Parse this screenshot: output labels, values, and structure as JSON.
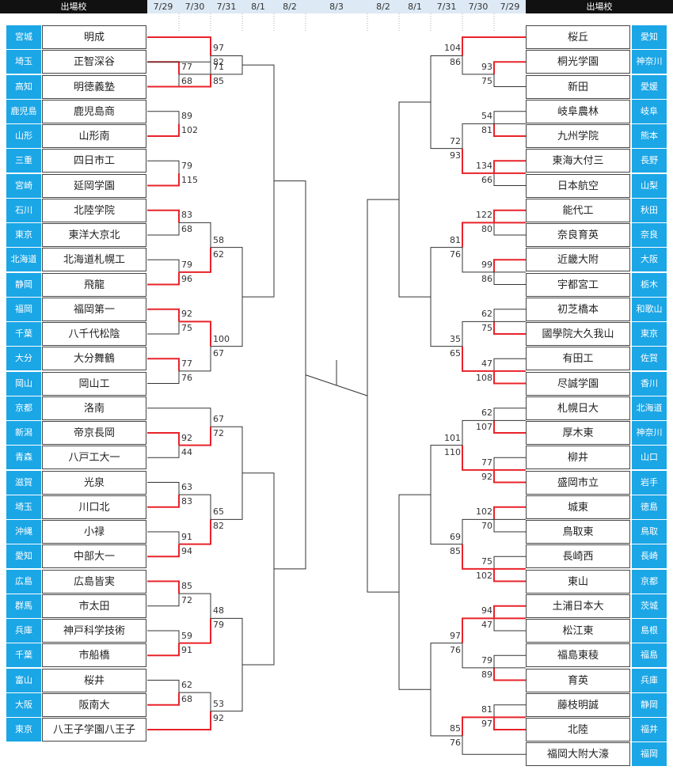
{
  "header": {
    "left_label": "出場校",
    "right_label": "出場校",
    "dates": [
      "7/29",
      "7/30",
      "7/31",
      "8/1",
      "8/2",
      "8/3",
      "8/2",
      "8/1",
      "7/31",
      "7/30",
      "7/29"
    ]
  },
  "left_teams": [
    {
      "pref": "宮城",
      "name": "明成"
    },
    {
      "pref": "埼玉",
      "name": "正智深谷"
    },
    {
      "pref": "高知",
      "name": "明徳義塾"
    },
    {
      "pref": "鹿児島",
      "name": "鹿児島商"
    },
    {
      "pref": "山形",
      "name": "山形南"
    },
    {
      "pref": "三重",
      "name": "四日市工"
    },
    {
      "pref": "宮崎",
      "name": "延岡学園"
    },
    {
      "pref": "石川",
      "name": "北陸学院"
    },
    {
      "pref": "東京",
      "name": "東洋大京北"
    },
    {
      "pref": "北海道",
      "name": "北海道札幌工"
    },
    {
      "pref": "静岡",
      "name": "飛龍"
    },
    {
      "pref": "福岡",
      "name": "福岡第一"
    },
    {
      "pref": "千葉",
      "name": "八千代松陰"
    },
    {
      "pref": "大分",
      "name": "大分舞鶴"
    },
    {
      "pref": "岡山",
      "name": "岡山工"
    },
    {
      "pref": "京都",
      "name": "洛南"
    },
    {
      "pref": "新潟",
      "name": "帝京長岡"
    },
    {
      "pref": "青森",
      "name": "八戸工大一"
    },
    {
      "pref": "滋賀",
      "name": "光泉"
    },
    {
      "pref": "埼玉",
      "name": "川口北"
    },
    {
      "pref": "沖縄",
      "name": "小禄"
    },
    {
      "pref": "愛知",
      "name": "中部大一"
    },
    {
      "pref": "広島",
      "name": "広島皆実"
    },
    {
      "pref": "群馬",
      "name": "市太田"
    },
    {
      "pref": "兵庫",
      "name": "神戸科学技術"
    },
    {
      "pref": "千葉",
      "name": "市船橋"
    },
    {
      "pref": "富山",
      "name": "桜井"
    },
    {
      "pref": "大阪",
      "name": "阪南大"
    },
    {
      "pref": "東京",
      "name": "八王子学園八王子"
    }
  ],
  "right_teams": [
    {
      "pref": "愛知",
      "name": "桜丘"
    },
    {
      "pref": "神奈川",
      "name": "桐光学園"
    },
    {
      "pref": "愛媛",
      "name": "新田"
    },
    {
      "pref": "岐阜",
      "name": "岐阜農林"
    },
    {
      "pref": "熊本",
      "name": "九州学院"
    },
    {
      "pref": "長野",
      "name": "東海大付三"
    },
    {
      "pref": "山梨",
      "name": "日本航空"
    },
    {
      "pref": "秋田",
      "name": "能代工"
    },
    {
      "pref": "奈良",
      "name": "奈良育英"
    },
    {
      "pref": "大阪",
      "name": "近畿大附"
    },
    {
      "pref": "栃木",
      "name": "宇都宮工"
    },
    {
      "pref": "和歌山",
      "name": "初芝橋本"
    },
    {
      "pref": "東京",
      "name": "國學院大久我山"
    },
    {
      "pref": "佐賀",
      "name": "有田工"
    },
    {
      "pref": "香川",
      "name": "尽誠学園"
    },
    {
      "pref": "北海道",
      "name": "札幌日大"
    },
    {
      "pref": "神奈川",
      "name": "厚木東"
    },
    {
      "pref": "山口",
      "name": "柳井"
    },
    {
      "pref": "岩手",
      "name": "盛岡市立"
    },
    {
      "pref": "徳島",
      "name": "城東"
    },
    {
      "pref": "鳥取",
      "name": "鳥取東"
    },
    {
      "pref": "長崎",
      "name": "長崎西"
    },
    {
      "pref": "京都",
      "name": "東山"
    },
    {
      "pref": "茨城",
      "name": "土浦日本大"
    },
    {
      "pref": "島根",
      "name": "松江東"
    },
    {
      "pref": "福島",
      "name": "福島東稜"
    },
    {
      "pref": "兵庫",
      "name": "育英"
    },
    {
      "pref": "静岡",
      "name": "藤枝明誠"
    },
    {
      "pref": "福井",
      "name": "北陸"
    },
    {
      "pref": "福岡",
      "name": "福岡大附大濠"
    }
  ],
  "left_r1": [
    {
      "top": 1,
      "bot": 2,
      "s": [
        "77",
        "68"
      ],
      "w": 0
    },
    {
      "top": 3,
      "bot": 4,
      "s": [
        "89",
        "102"
      ],
      "w": 1
    },
    {
      "top": 5,
      "bot": 6,
      "s": [
        "79",
        "115"
      ],
      "w": 1
    },
    {
      "top": 7,
      "bot": 8,
      "s": [
        "83",
        "68"
      ],
      "w": 0
    },
    {
      "top": 9,
      "bot": 10,
      "s": [
        "79",
        "96"
      ],
      "w": 1
    },
    {
      "top": 11,
      "bot": 12,
      "s": [
        "92",
        "75"
      ],
      "w": 0
    },
    {
      "top": 13,
      "bot": 14,
      "s": [
        "77",
        "76"
      ],
      "w": 0
    },
    {
      "top": 16,
      "bot": 17,
      "s": [
        "92",
        "44"
      ],
      "w": 0
    },
    {
      "top": 18,
      "bot": 19,
      "s": [
        "63",
        "83"
      ],
      "w": 1
    },
    {
      "top": 20,
      "bot": 21,
      "s": [
        "91",
        "94"
      ],
      "w": 1
    },
    {
      "top": 22,
      "bot": 23,
      "s": [
        "85",
        "72"
      ],
      "w": 0
    },
    {
      "top": 24,
      "bot": 25,
      "s": [
        "59",
        "91"
      ],
      "w": 1
    },
    {
      "top": 26,
      "bot": 27,
      "s": [
        "62",
        "68"
      ],
      "w": 1
    }
  ],
  "left_r2": [
    {
      "top": [
        0
      ],
      "bot": [
        0
      ],
      "s": [
        "97",
        "82"
      ],
      "w": 0
    },
    {
      "top": [
        1
      ],
      "bot": [
        2
      ],
      "s": [
        "71",
        "85"
      ],
      "w": 1
    },
    {
      "top": [
        0,
        3
      ],
      "bot": [
        0,
        4
      ],
      "s": [
        "58",
        "62"
      ],
      "w": 1
    },
    {
      "top": [
        0,
        5
      ],
      "bot": [
        0,
        6
      ],
      "s": [
        "100",
        "67"
      ],
      "w": 0
    },
    {
      "top": [
        15
      ],
      "bot": [
        0,
        7
      ],
      "s": [
        "67",
        "72"
      ],
      "w": 1
    },
    {
      "top": [
        0,
        8
      ],
      "bot": [
        0,
        9
      ],
      "s": [
        "65",
        "82"
      ],
      "w": 1
    },
    {
      "top": [
        0,
        10
      ],
      "bot": [
        0,
        11
      ],
      "s": [
        "48",
        "79"
      ],
      "w": 1
    },
    {
      "top": [
        0,
        12
      ],
      "bot": [
        28
      ],
      "s": [
        "53",
        "92"
      ],
      "w": 1
    }
  ],
  "right_r1": [
    {
      "top": 1,
      "bot": 2,
      "s": [
        "93",
        "75"
      ],
      "w": 0
    },
    {
      "top": 3,
      "bot": 4,
      "s": [
        "54",
        "81"
      ],
      "w": 1
    },
    {
      "top": 5,
      "bot": 6,
      "s": [
        "134",
        "66"
      ],
      "w": 0
    },
    {
      "top": 7,
      "bot": 8,
      "s": [
        "122",
        "80"
      ],
      "w": 0
    },
    {
      "top": 9,
      "bot": 10,
      "s": [
        "99",
        "86"
      ],
      "w": 0
    },
    {
      "top": 11,
      "bot": 12,
      "s": [
        "62",
        "75"
      ],
      "w": 1
    },
    {
      "top": 13,
      "bot": 14,
      "s": [
        "47",
        "108"
      ],
      "w": 1
    },
    {
      "top": 15,
      "bot": 16,
      "s": [
        "62",
        "107"
      ],
      "w": 1
    },
    {
      "top": 17,
      "bot": 18,
      "s": [
        "77",
        "92"
      ],
      "w": 1
    },
    {
      "top": 19,
      "bot": 20,
      "s": [
        "102",
        "70"
      ],
      "w": 0
    },
    {
      "top": 21,
      "bot": 22,
      "s": [
        "75",
        "102"
      ],
      "w": 1
    },
    {
      "top": 23,
      "bot": 24,
      "s": [
        "94",
        "47"
      ],
      "w": 0
    },
    {
      "top": 25,
      "bot": 26,
      "s": [
        "79",
        "89"
      ],
      "w": 1
    },
    {
      "top": 27,
      "bot": 28,
      "s": [
        "81",
        "97"
      ],
      "w": 1
    }
  ],
  "right_r2": [
    {
      "top": [
        0
      ],
      "bot": [
        0
      ],
      "s": [
        "104",
        "86"
      ],
      "w": 0
    },
    {
      "top": [
        1
      ],
      "bot": [
        2
      ],
      "s": [
        "72",
        "93"
      ],
      "w": 1
    },
    {
      "top": [
        3
      ],
      "bot": [
        4
      ],
      "s": [
        "81",
        "76"
      ],
      "w": 0
    },
    {
      "top": [
        5
      ],
      "bot": [
        6
      ],
      "s": [
        "35",
        "65"
      ],
      "w": 1
    },
    {
      "top": [
        7
      ],
      "bot": [
        8
      ],
      "s": [
        "101",
        "110"
      ],
      "w": 1
    },
    {
      "top": [
        9
      ],
      "bot": [
        10
      ],
      "s": [
        "69",
        "85"
      ],
      "w": 1
    },
    {
      "top": [
        11
      ],
      "bot": [
        12
      ],
      "s": [
        "97",
        "76"
      ],
      "w": 0
    },
    {
      "top": [
        13
      ],
      "bot": [
        29
      ],
      "s": [
        "85",
        "76"
      ],
      "w": 0
    }
  ],
  "colors": {
    "win_line": "#e8232a",
    "line": "#333333",
    "pref_bg": "#1ba6e6",
    "header_bg": "#dde9f4",
    "header_dark": "#111111"
  }
}
